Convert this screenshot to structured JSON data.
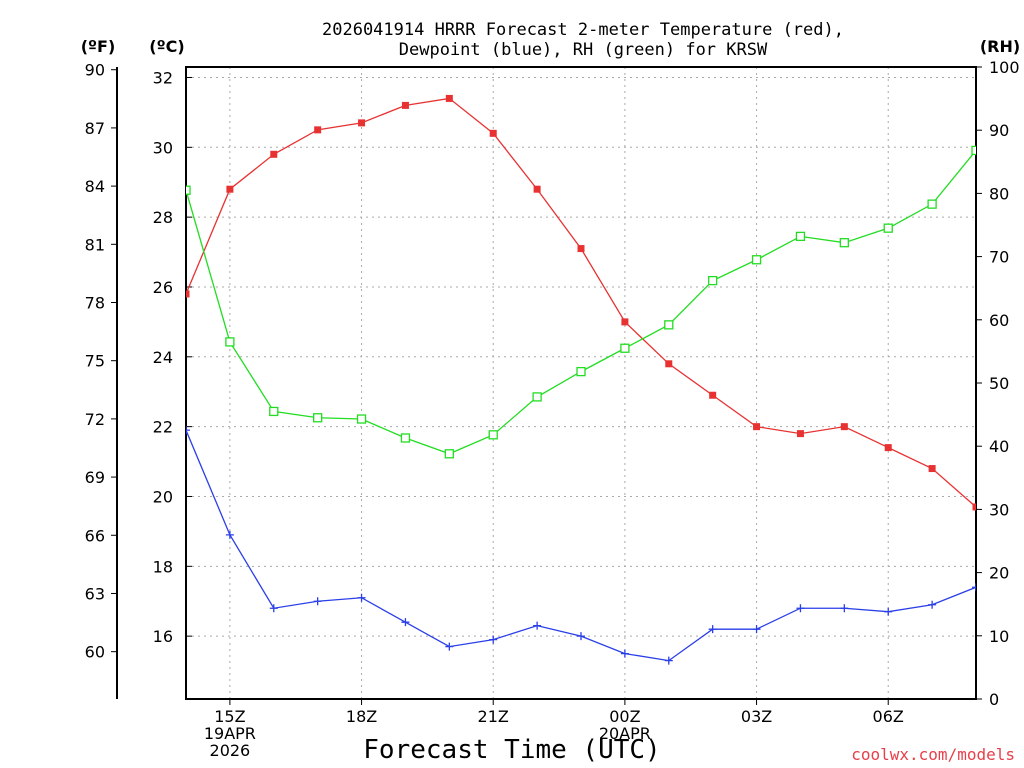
{
  "chart_data": {
    "type": "line",
    "title_line1": "2026041914 HRRR Forecast 2-meter Temperature (red),",
    "title_line2": "Dewpoint (blue), RH (green) for KRSW",
    "xlabel": "Forecast Time (UTC)",
    "credit": "coolwx.com/models",
    "unit_left_f": "(ºF)",
    "unit_left_c": "(ºC)",
    "unit_right": "(RH)",
    "x_hours": [
      14,
      15,
      16,
      17,
      18,
      19,
      20,
      21,
      22,
      23,
      24,
      25,
      26,
      27,
      28,
      29,
      30,
      31,
      32
    ],
    "xlim": [
      14,
      32
    ],
    "c_lim": [
      14.2,
      32.3
    ],
    "rh_lim": [
      0,
      100
    ],
    "c_ticks": [
      "16",
      "18",
      "20",
      "22",
      "24",
      "26",
      "28",
      "30",
      "32"
    ],
    "f_ticks": [
      "60",
      "63",
      "66",
      "69",
      "72",
      "75",
      "78",
      "81",
      "84",
      "87",
      "90"
    ],
    "rh_ticks": [
      "0",
      "10",
      "20",
      "30",
      "40",
      "50",
      "60",
      "70",
      "80",
      "90",
      "100"
    ],
    "x_ticks": [
      {
        "hour": 15,
        "lines": [
          "15Z",
          "19APR",
          "2026"
        ]
      },
      {
        "hour": 18,
        "lines": [
          "18Z"
        ]
      },
      {
        "hour": 21,
        "lines": [
          "21Z"
        ]
      },
      {
        "hour": 24,
        "lines": [
          "00Z",
          "20APR"
        ]
      },
      {
        "hour": 27,
        "lines": [
          "03Z"
        ]
      },
      {
        "hour": 30,
        "lines": [
          "06Z"
        ]
      }
    ],
    "series": [
      {
        "name": "2-meter Temperature",
        "axis": "C",
        "color": "#e83232",
        "marker": "square-filled",
        "values": [
          25.8,
          28.8,
          29.8,
          30.5,
          30.7,
          31.2,
          31.4,
          30.4,
          28.8,
          27.1,
          25.0,
          23.8,
          22.9,
          22.0,
          21.8,
          22.0,
          21.4,
          20.8,
          19.7
        ]
      },
      {
        "name": "Dewpoint",
        "axis": "C",
        "color": "#2a3fe8",
        "marker": "plus",
        "values": [
          21.9,
          18.9,
          16.8,
          17.0,
          17.1,
          16.4,
          15.7,
          15.9,
          16.3,
          16.0,
          15.5,
          15.3,
          16.2,
          16.2,
          16.8,
          16.8,
          16.7,
          16.9,
          17.4
        ]
      },
      {
        "name": "Relative Humidity",
        "axis": "RH",
        "color": "#22dd22",
        "marker": "square-open",
        "values": [
          80.5,
          56.5,
          45.5,
          44.5,
          44.3,
          41.3,
          38.8,
          41.8,
          47.8,
          51.8,
          55.5,
          59.2,
          66.2,
          69.5,
          73.2,
          72.2,
          74.5,
          78.3,
          86.8
        ]
      }
    ]
  }
}
